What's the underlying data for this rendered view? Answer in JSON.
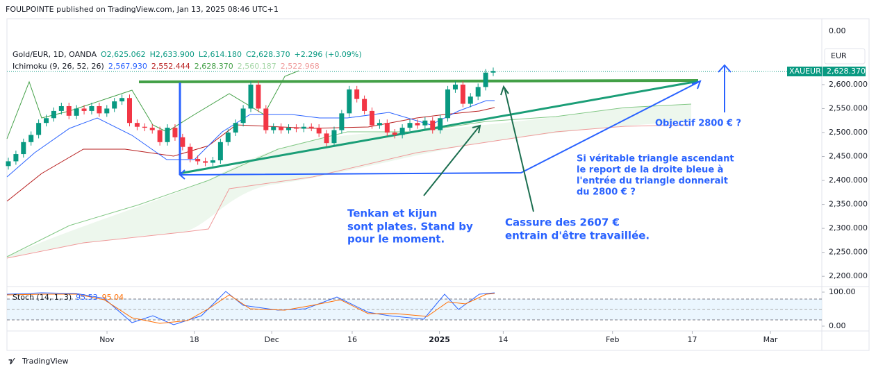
{
  "screen": {
    "header": "FOULPOINTE published on TradingView.com, Jan 13, 2025 08:46 UTC+1",
    "currency": "EUR",
    "top_label": "0.00",
    "symbol_tag": "XAUEUR",
    "last_price": "2,628.370",
    "footer": "TradingView",
    "annotations": [
      "Objectif 2800 € ?",
      "Si véritable triangle ascendant",
      "le report de la droite bleue à",
      "l'entrée du triangle donnerait",
      "du 2800 € ?",
      "Tenkan et kijun",
      "sont plates. Stand by",
      "pour le moment.",
      "Cassure des 2607 €",
      "entrain d'être travaillée."
    ]
  },
  "chart_data": {
    "type": "candlestick",
    "title": "Gold/EUR, 1D, OANDA",
    "legend": {
      "open": "O2,625.062",
      "high": "H2,633.900",
      "low": "L2,614.180",
      "close": "C2,628.370",
      "change": "+2.296 (+0.09%)",
      "ichimoku": "Ichimoku (9, 26, 52, 26)",
      "ichimoku_values": [
        "2,567.930",
        "2,552.444",
        "2,628.370",
        "2,560.187",
        "2,522.968"
      ],
      "stoch": "Stoch (14, 1, 3)",
      "stoch_values": [
        "95.53",
        "95.04"
      ]
    },
    "up_color": "#089981",
    "down_color": "#f23645",
    "first_open": 2430,
    "values": [
      2440,
      2455,
      2480,
      2495,
      2520,
      2530,
      2545,
      2555,
      2535,
      2550,
      2545,
      2555,
      2540,
      2550,
      2565,
      2572,
      2520,
      2512,
      2510,
      2505,
      2480,
      2510,
      2490,
      2470,
      2445,
      2440,
      2437,
      2442,
      2480,
      2500,
      2520,
      2550,
      2600,
      2550,
      2505,
      2512,
      2505,
      2510,
      2508,
      2512,
      2510,
      2498,
      2478,
      2505,
      2540,
      2590,
      2570,
      2545,
      2515,
      2520,
      2500,
      2495,
      2510,
      2520,
      2515,
      2525,
      2505,
      2530,
      2590,
      2600,
      2560,
      2575,
      2595,
      2625,
      2628.37
    ],
    "ylim": [
      2180,
      2736
    ],
    "yticks": [
      {
        "value": 2200,
        "label": "2,200.000"
      },
      {
        "value": 2250,
        "label": "2,250.000"
      },
      {
        "value": 2300,
        "label": "2,300.000"
      },
      {
        "value": 2350,
        "label": "2,350.000"
      },
      {
        "value": 2400,
        "label": "2,400.000"
      },
      {
        "value": 2450,
        "label": "2,450.000"
      },
      {
        "value": 2500,
        "label": "2,500.000"
      },
      {
        "value": 2550,
        "label": "2,550.000"
      },
      {
        "value": 2600,
        "label": "2,600.000"
      }
    ],
    "xlim": [
      0,
      100
    ],
    "xticks": [
      {
        "value": 13,
        "label": "Nov"
      },
      {
        "value": 24.5,
        "label": "18"
      },
      {
        "value": 34.7,
        "label": "Dec"
      },
      {
        "value": 45.3,
        "label": "16"
      },
      {
        "value": 56.8,
        "label": "2025"
      },
      {
        "value": 65.2,
        "label": "14"
      },
      {
        "value": 79.6,
        "label": "Feb"
      },
      {
        "value": 90.1,
        "label": "17"
      },
      {
        "value": 100.4,
        "label": "Mar"
      }
    ],
    "y2lim": [
      0,
      100
    ],
    "y2ticks": [
      {
        "value": 0,
        "label": "0.00"
      },
      {
        "value": 100,
        "label": "100.00"
      }
    ]
  }
}
